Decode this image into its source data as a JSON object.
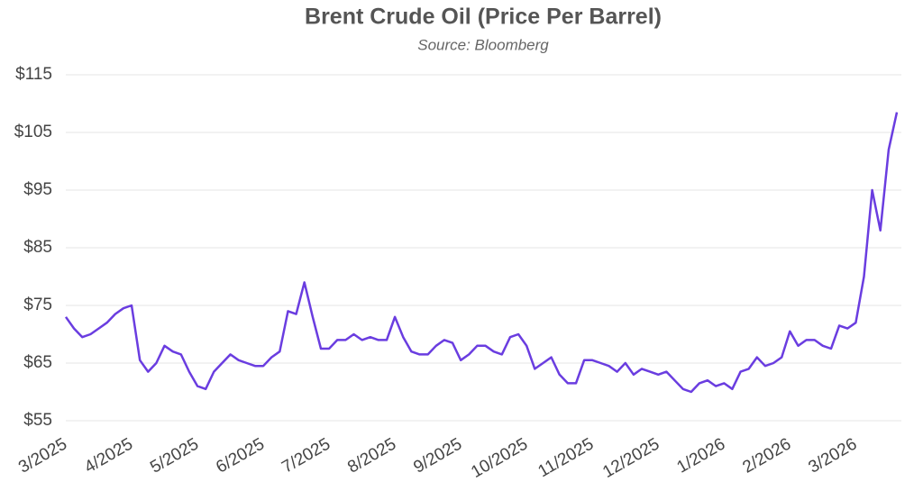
{
  "chart_data": {
    "type": "line",
    "title": "Brent Crude Oil (Price Per Barrel)",
    "subtitle": "Source: Bloomberg",
    "categories": [
      "3/2025",
      null,
      null,
      null,
      null,
      null,
      null,
      null,
      "4/2025",
      null,
      null,
      null,
      null,
      null,
      null,
      null,
      "5/2025",
      null,
      null,
      null,
      null,
      null,
      null,
      null,
      "6/2025",
      null,
      null,
      null,
      null,
      null,
      null,
      null,
      "7/2025",
      null,
      null,
      null,
      null,
      null,
      null,
      null,
      "8/2025",
      null,
      null,
      null,
      null,
      null,
      null,
      null,
      "9/2025",
      null,
      null,
      null,
      null,
      null,
      null,
      null,
      "10/2025",
      null,
      null,
      null,
      null,
      null,
      null,
      null,
      "11/2025",
      null,
      null,
      null,
      null,
      null,
      null,
      null,
      "12/2025",
      null,
      null,
      null,
      null,
      null,
      null,
      null,
      "1/2026",
      null,
      null,
      null,
      null,
      null,
      null,
      null,
      "2/2026",
      null,
      null,
      null,
      null,
      null,
      null,
      null,
      "3/2026",
      null,
      null,
      null,
      null,
      null
    ],
    "series": [
      {
        "name": "Brent",
        "color": "#6a3de0",
        "values": [
          73,
          71,
          69.5,
          70,
          71,
          72,
          73.5,
          74.5,
          75,
          65.5,
          63.5,
          65,
          68,
          67,
          66.5,
          63.5,
          61,
          60.5,
          63.5,
          65,
          66.5,
          65.5,
          65,
          64.5,
          64.5,
          66,
          67,
          74,
          73.5,
          79,
          73,
          67.5,
          67.5,
          69,
          69,
          70,
          69,
          69.5,
          69,
          69,
          73,
          69.5,
          67,
          66.5,
          66.5,
          68,
          69,
          68.5,
          65.5,
          66.5,
          68,
          68,
          67,
          66.5,
          69.5,
          70,
          68,
          64,
          65,
          66,
          63,
          61.5,
          61.5,
          65.5,
          65.5,
          65,
          64.5,
          63.5,
          65,
          63,
          64,
          63.5,
          63,
          63.5,
          62,
          60.5,
          60,
          61.5,
          62,
          61,
          61.5,
          60.5,
          63.5,
          64,
          66,
          64.5,
          65,
          66,
          70.5,
          68,
          69,
          69,
          68,
          67.5,
          71.5,
          71,
          72,
          80,
          95,
          88,
          102,
          108.5
        ]
      }
    ],
    "ylim": [
      55,
      115
    ],
    "yticks": [
      {
        "value": 55,
        "label": "$55"
      },
      {
        "value": 65,
        "label": "$65"
      },
      {
        "value": 75,
        "label": "$75"
      },
      {
        "value": 85,
        "label": "$85"
      },
      {
        "value": 95,
        "label": "$95"
      },
      {
        "value": 105,
        "label": "$105"
      },
      {
        "value": 115,
        "label": "$115"
      }
    ],
    "grid": true
  }
}
